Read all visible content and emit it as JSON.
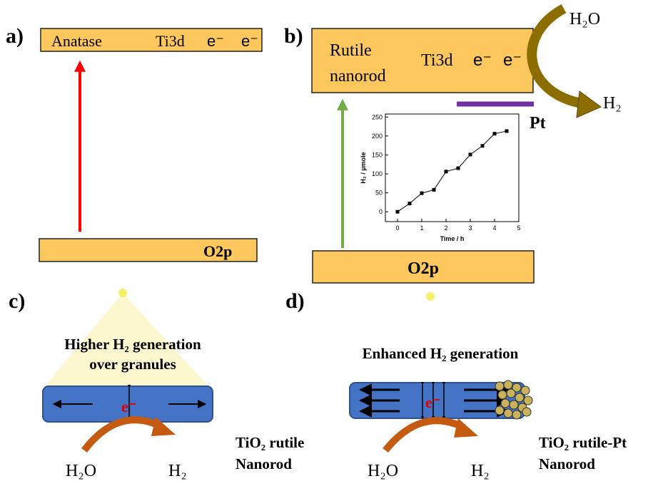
{
  "panel_a": {
    "label": "a)",
    "cb_name": "Anatase",
    "cb_level": "Ti3d",
    "cb_electrons": [
      "e⁻",
      "e⁻"
    ],
    "vb_level": "O2p"
  },
  "panel_b": {
    "label": "b)",
    "cb_name": [
      "Rutile",
      "nanorod"
    ],
    "cb_level": "Ti3d",
    "cb_electrons": [
      "e⁻",
      "e⁻"
    ],
    "vb_level": "O2p",
    "reactant": "H₂O",
    "product": "H₂",
    "cocatalyst": "Pt"
  },
  "panel_c": {
    "label": "c)",
    "caption": [
      "Higher H₂ generation",
      "over granules"
    ],
    "electron": "e⁻",
    "reactant": "H₂O",
    "product": "H₂",
    "material": [
      "TiO₂ rutile",
      "Nanorod"
    ]
  },
  "panel_d": {
    "label": "d)",
    "caption": "Enhanced H₂ generation",
    "electron": "e⁻",
    "reactant": "H₂O",
    "product": "H₂",
    "material": [
      "TiO₂ rutile-Pt",
      "Nanorod"
    ]
  },
  "chart_data": {
    "type": "line",
    "xlabel": "Time / h",
    "ylabel": "H₂ / µmole",
    "x": [
      0,
      0.5,
      1,
      1.5,
      2,
      2.5,
      3,
      3.5,
      4,
      4.5
    ],
    "values": [
      0,
      22,
      49,
      58,
      106,
      115,
      151,
      174,
      206,
      213
    ],
    "color": "#000000",
    "xlim": [
      -0.5,
      5
    ],
    "xticks": [
      0,
      1,
      2,
      3,
      4,
      5
    ],
    "ylim": [
      -26,
      258
    ],
    "yticks": [
      0,
      50,
      100,
      150,
      200,
      250
    ]
  }
}
